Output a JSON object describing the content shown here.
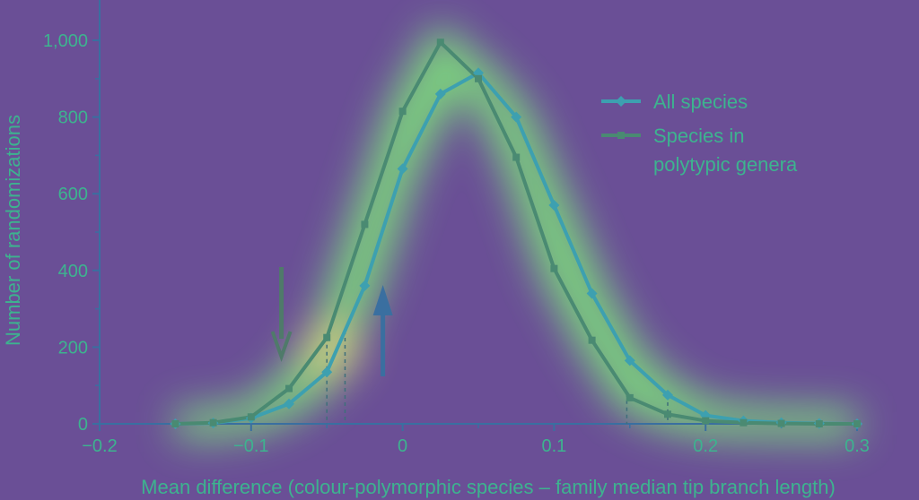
{
  "chart_data": {
    "type": "line",
    "xlabel": "Mean difference (colour-polymorphic species – family median tip branch length)",
    "ylabel": "Number of randomizations",
    "xlim": [
      -0.2,
      0.3
    ],
    "ylim": [
      0,
      1000
    ],
    "x_ticks": [
      -0.2,
      -0.1,
      0,
      0.1,
      0.2,
      0.3
    ],
    "x_tick_labels": [
      "−0.2",
      "−0.1",
      "0",
      "0.1",
      "0.2",
      "0.3"
    ],
    "y_ticks": [
      0,
      200,
      400,
      600,
      800,
      1000
    ],
    "y_tick_labels": [
      "0",
      "200",
      "400",
      "600",
      "800",
      "1,000"
    ],
    "x": [
      -0.15,
      -0.125,
      -0.1,
      -0.075,
      -0.05,
      -0.025,
      0,
      0.025,
      0.05,
      0.075,
      0.1,
      0.125,
      0.15,
      0.175,
      0.2,
      0.225,
      0.25,
      0.275,
      0.3
    ],
    "series": [
      {
        "name": "All species",
        "color": "#3da0b0",
        "marker": "diamond",
        "values": [
          0,
          2,
          15,
          52,
          135,
          360,
          665,
          860,
          915,
          800,
          570,
          340,
          165,
          75,
          22,
          8,
          3,
          1,
          0
        ]
      },
      {
        "name": "Species in polytypic genera",
        "color": "#4a8a72",
        "marker": "square",
        "values": [
          0,
          3,
          18,
          92,
          225,
          520,
          815,
          995,
          900,
          695,
          405,
          218,
          68,
          25,
          8,
          3,
          1,
          0,
          0
        ]
      }
    ],
    "legend": {
      "position": "top-right",
      "entries": [
        "All species",
        "Species in",
        "polytypic genera"
      ]
    },
    "annotations": {
      "arrows": [
        {
          "direction": "down",
          "x": -0.08,
          "color": "#4f7a6a"
        },
        {
          "direction": "up",
          "x": -0.013,
          "color": "#3a6fa0"
        }
      ],
      "dashed_lines_x": [
        -0.05,
        -0.038,
        0.148,
        0.175
      ]
    },
    "grid": false
  }
}
